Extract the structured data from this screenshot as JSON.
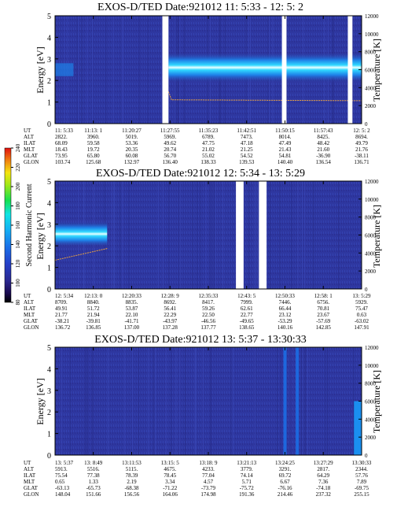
{
  "chart_data": [
    {
      "type": "heatmap",
      "title": "EXOS-D/TED   Date:921012  11: 5:33 - 12: 5: 2",
      "ylabel": "Energy [eV]",
      "y2label": "Temperature [K]",
      "ylim": [
        0,
        5
      ],
      "y2lim": [
        0,
        12000
      ],
      "yticks": [
        "0",
        "1",
        "2",
        "3",
        "4",
        "5"
      ],
      "y2ticks": [
        "0",
        "2000",
        "4000",
        "6000",
        "8000",
        "10000",
        "12000"
      ],
      "data_gaps_fraction": [
        [
          0.35,
          0.37
        ],
        [
          0.74,
          0.755
        ],
        [
          0.955,
          0.97
        ]
      ],
      "band": {
        "start_fraction": 0.37,
        "energy_center": 2.6,
        "energy_width": 0.7
      },
      "early_band": {
        "range_fraction": [
          0.0,
          0.06
        ],
        "energy_center": 2.5
      },
      "temperature_trace": {
        "level_K": 2650,
        "start_fraction": 0.37,
        "end_fraction": 1.0
      },
      "footer": {
        "row_labels": [
          "UT",
          "ALT",
          "ILAT",
          "MLT",
          "GLAT",
          "GLON"
        ],
        "columns": [
          [
            "11: 5:33",
            "2822.",
            "68.09",
            "18.43",
            "73.95",
            "103.74"
          ],
          [
            "11:13: 1",
            "3960.",
            "59.58",
            "19.72",
            "65.80",
            "125.68"
          ],
          [
            "11:20:27",
            "5019.",
            "53.36",
            "20.35",
            "60.08",
            "132.97"
          ],
          [
            "11:27:55",
            "5969.",
            "49.62",
            "20.74",
            "56.70",
            "136.40"
          ],
          [
            "11:35:23",
            "6789.",
            "47.75",
            "21.02",
            "55.02",
            "138.33"
          ],
          [
            "11:42:51",
            "7473.",
            "47.18",
            "21.25",
            "54.52",
            "139.53"
          ],
          [
            "11:50:15",
            "8014.",
            "47.49",
            "21.43",
            "54.81",
            "140.40"
          ],
          [
            "11:57:43",
            "8425.",
            "48.42",
            "21.60",
            "-36.90",
            "136.54"
          ],
          [
            "12: 5: 2",
            "8694.",
            "49.79",
            "21.76",
            "-38.11",
            "136.71"
          ]
        ]
      }
    },
    {
      "type": "heatmap",
      "title": "EXOS-D/TED   Date:921012  12: 5:34 - 13: 5:29",
      "ylabel": "Energy [eV]",
      "y2label": "Temperature [K]",
      "ylim": [
        0,
        5
      ],
      "y2lim": [
        0,
        12000
      ],
      "yticks": [
        "0",
        "1",
        "2",
        "3",
        "4",
        "5"
      ],
      "y2ticks": [
        "0",
        "2000",
        "4000",
        "6000",
        "8000",
        "10000",
        "12000"
      ],
      "data_gaps_fraction": [
        [
          0.59,
          0.615
        ],
        [
          0.665,
          0.69
        ]
      ],
      "band": {
        "range_fraction": [
          0.0,
          0.17
        ],
        "energy_center": 2.55,
        "energy_width": 0.6
      },
      "temperature_trace": {
        "start_K": 3200,
        "end_K": 4500,
        "range_fraction": [
          0.0,
          0.17
        ]
      },
      "footer": {
        "row_labels": [
          "UT",
          "ALT",
          "ILAT",
          "MLT",
          "GLAT",
          "GLON"
        ],
        "columns": [
          [
            "12: 5:34",
            "8709.",
            "49.91",
            "21.77",
            "-38.21",
            "136.72"
          ],
          [
            "12:13: 0",
            "8840.",
            "51.72",
            "21.94",
            "-39.81",
            "136.85"
          ],
          [
            "12:20:33",
            "8835.",
            "53.87",
            "22.10",
            "-41.71",
            "137.00"
          ],
          [
            "12:28: 9",
            "8692.",
            "56.41",
            "22.29",
            "-43.97",
            "137.28"
          ],
          [
            "12:35:33",
            "8417.",
            "59.26",
            "22.50",
            "-46.56",
            "137.77"
          ],
          [
            "12:43: 5",
            "7999.",
            "62.61",
            "22.77",
            "-49.65",
            "138.65"
          ],
          [
            "12:50:33",
            "7446.",
            "66.44",
            "23.12",
            "-53.29",
            "140.16"
          ],
          [
            "12:58: 1",
            "6756.",
            "70.81",
            "23.67",
            "-57.69",
            "142.85"
          ],
          [
            "13: 5:29",
            "5929.",
            "75.47",
            "0.63",
            "-63.02",
            "147.91"
          ]
        ]
      }
    },
    {
      "type": "heatmap",
      "title": "EXOS-D/TED   Date:921012  13: 5:37 - 13:30:33",
      "ylabel": "Energy [eV]",
      "y2label": "Temperature [K]",
      "ylim": [
        0,
        5
      ],
      "y2lim": [
        0,
        12000
      ],
      "yticks": [
        "0",
        "1",
        "2",
        "3",
        "4",
        "5"
      ],
      "y2ticks": [
        "0",
        "2000",
        "4000",
        "6000",
        "8000",
        "10000",
        "12000"
      ],
      "streaks_fraction": [
        0.745,
        0.785
      ],
      "footer": {
        "row_labels": [
          "UT",
          "ALT",
          "ILAT",
          "MLT",
          "GLAT",
          "GLON"
        ],
        "columns": [
          [
            "13: 5:37",
            "5913.",
            "75.54",
            "0.65",
            "-63.13",
            "148.04"
          ],
          [
            "13: 8:49",
            "5516.",
            "77.38",
            "1.33",
            "-65.73",
            "151.66"
          ],
          [
            "13:11:53",
            "5115.",
            "78.39",
            "2.19",
            "-68.38",
            "156.56"
          ],
          [
            "13:15: 5",
            "4675.",
            "78.45",
            "3.34",
            "-71.22",
            "164.06"
          ],
          [
            "13:18: 9",
            "4233.",
            "77.04",
            "4.57",
            "-73.79",
            "174.98"
          ],
          [
            "13:21:13",
            "3779.",
            "74.14",
            "5.71",
            "-75.72",
            "191.36"
          ],
          [
            "13:24:25",
            "3291.",
            "69.72",
            "6.67",
            "-76.16",
            "214.46"
          ],
          [
            "13:27:29",
            "2817.",
            "64.29",
            "7.36",
            "-74.18",
            "237.32"
          ],
          [
            "13:30:33",
            "2344.",
            "57.76",
            "7.89",
            "-69.75",
            "255.15"
          ]
        ]
      }
    }
  ],
  "colorbar": {
    "label": "Second Harmonic Current",
    "range": [
      80,
      240
    ],
    "ticks": [
      "80",
      "100",
      "120",
      "140",
      "160",
      "180",
      "200",
      "220",
      "240"
    ],
    "colors": [
      "#000000",
      "#2a1070",
      "#2b2fa8",
      "#1f55d8",
      "#1a8ff0",
      "#10d4f4",
      "#12e060",
      "#e4e410",
      "#f08010",
      "#e01010"
    ]
  },
  "style": {
    "background": "#2e37a0",
    "band_color": "#28c8ff",
    "band_core": "#ffffff",
    "trace_color": "#e8a040",
    "gap_color": "#ffffff"
  }
}
